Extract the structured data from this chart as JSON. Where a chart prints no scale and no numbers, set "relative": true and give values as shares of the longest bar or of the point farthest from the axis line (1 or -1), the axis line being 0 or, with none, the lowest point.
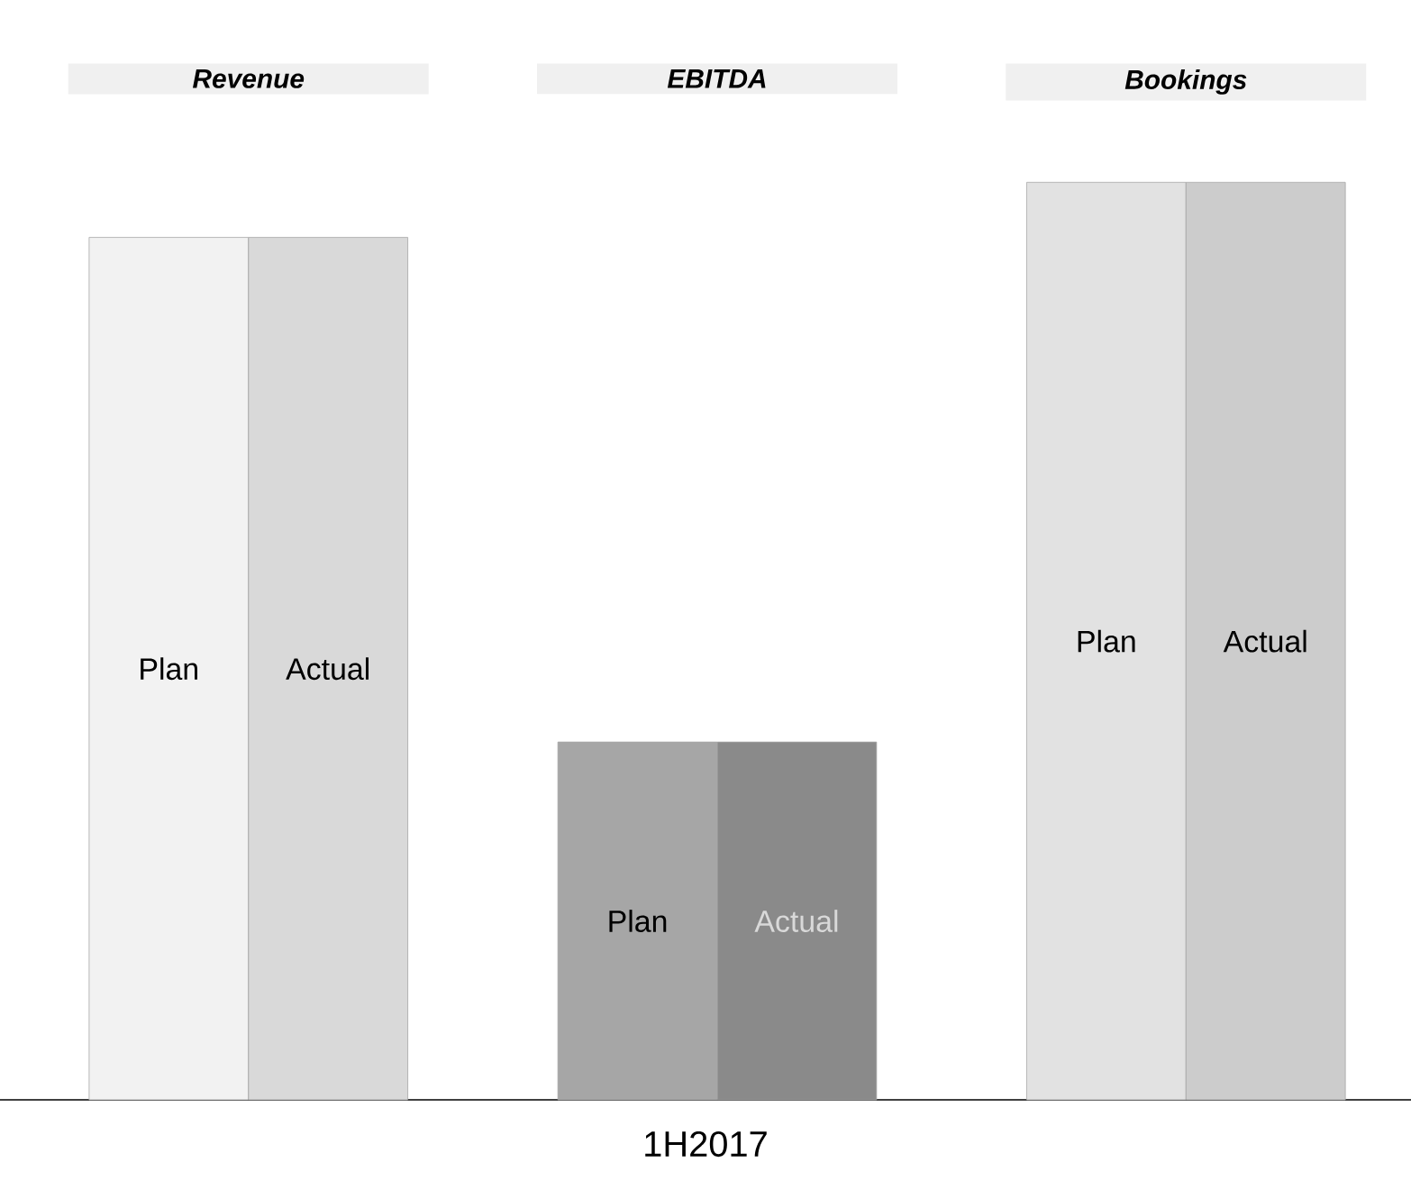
{
  "chart_data": {
    "type": "bar",
    "relative": true,
    "xlabel": "1H2017",
    "categories": [
      "Revenue",
      "EBITDA",
      "Bookings"
    ],
    "series": [
      {
        "name": "Plan",
        "colors": [
          "#f2f2f2",
          "#a6a6a6",
          "#e2e2e2"
        ],
        "values": [
          0.94,
          0.39,
          1
        ]
      },
      {
        "name": "Actual",
        "colors": [
          "#d9d9d9",
          "#8a8a8a",
          "#cccccc"
        ],
        "values": [
          0.94,
          0.39,
          1
        ]
      }
    ]
  }
}
